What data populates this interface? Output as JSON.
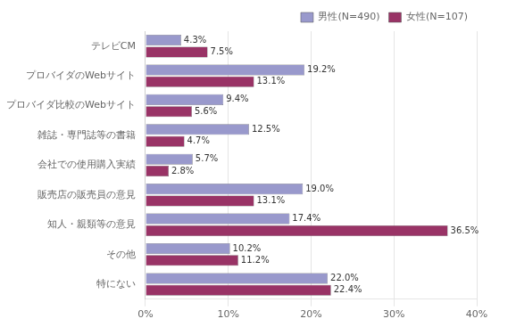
{
  "chart_data": {
    "type": "bar",
    "orientation": "horizontal",
    "categories": [
      "テレビCM",
      "プロバイダのWebサイト",
      "プロバイダ比較のWebサイト",
      "雑誌・専門誌等の書籍",
      "会社での使用購入実績",
      "販売店の販売員の意見",
      "知人・親類等の意見",
      "その他",
      "特にない"
    ],
    "series": [
      {
        "name": "男性(N=490)",
        "color": "#9999cc",
        "values": [
          4.3,
          19.2,
          9.4,
          12.5,
          5.7,
          19.0,
          17.4,
          10.2,
          22.0
        ],
        "value_labels": [
          "4.3%",
          "19.2%",
          "9.4%",
          "12.5%",
          "5.7%",
          "19.0%",
          "17.4%",
          "10.2%",
          "22.0%"
        ]
      },
      {
        "name": "女性(N=107)",
        "color": "#993366",
        "values": [
          7.5,
          13.1,
          5.6,
          4.7,
          2.8,
          13.1,
          36.5,
          11.2,
          22.4
        ],
        "value_labels": [
          "7.5%",
          "13.1%",
          "5.6%",
          "4.7%",
          "2.8%",
          "13.1%",
          "36.5%",
          "11.2%",
          "22.4%"
        ]
      }
    ],
    "xlim": [
      0,
      40
    ],
    "xticks": [
      {
        "value": 0,
        "label": "0%"
      },
      {
        "value": 10,
        "label": "10%"
      },
      {
        "value": 20,
        "label": "20%"
      },
      {
        "value": 30,
        "label": "30%"
      },
      {
        "value": 40,
        "label": "40%"
      }
    ],
    "grid": true,
    "legend": "upper right",
    "data_labels": true
  }
}
